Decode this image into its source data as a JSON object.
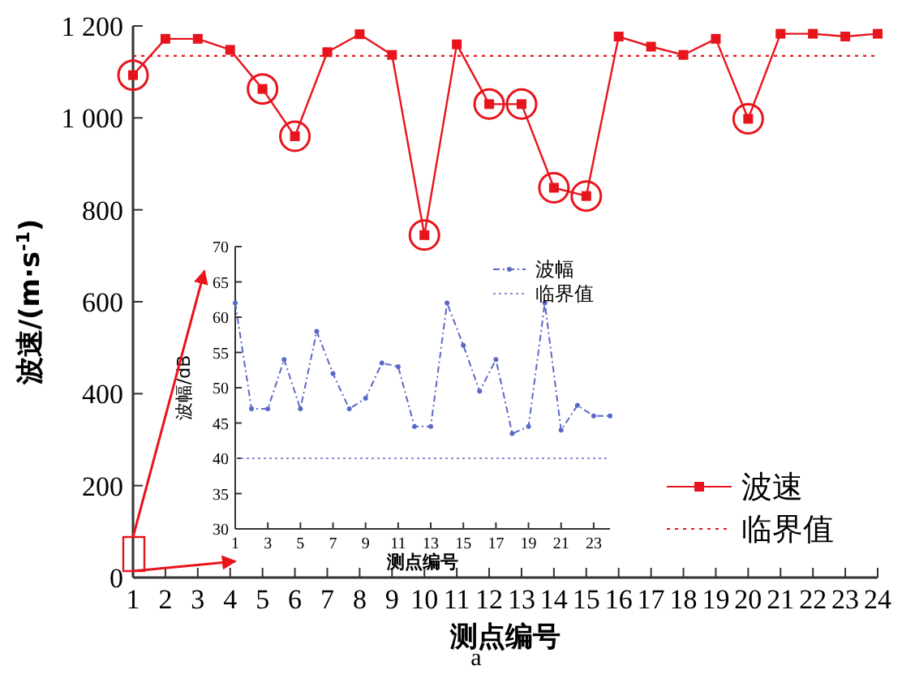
{
  "chart_data": [
    {
      "type": "line",
      "xlabel": "测点编号",
      "ylabel": "波速/(m·s$^{-1}$)",
      "xlim": [
        1,
        24
      ],
      "xticks": [
        1,
        2,
        3,
        4,
        5,
        6,
        7,
        8,
        9,
        10,
        11,
        12,
        13,
        14,
        15,
        16,
        17,
        18,
        19,
        20,
        21,
        22,
        23,
        24
      ],
      "ylim": [
        0,
        1200
      ],
      "yticks": [
        0,
        200,
        400,
        600,
        800,
        {
          "value": 1000,
          "label": "1 000"
        },
        {
          "value": 1200,
          "label": "1 200"
        }
      ],
      "legend": "right",
      "grid": false,
      "annotations": [
        "a"
      ],
      "series": [
        {
          "name": "波速",
          "color": "#e8141c",
          "marker": "square",
          "line_style": "solid",
          "x": [
            1,
            2,
            3,
            4,
            5,
            6,
            7,
            8,
            9,
            10,
            11,
            12,
            13,
            14,
            15,
            16,
            17,
            18,
            19,
            20,
            21,
            22,
            23,
            24
          ],
          "values": [
            1093,
            1172,
            1172,
            1148,
            1063,
            960,
            1143,
            1182,
            1137,
            745,
            1160,
            1030,
            1030,
            848,
            830,
            1177,
            1155,
            1137,
            1172,
            998,
            1183,
            1183,
            1177,
            1183
          ]
        },
        {
          "name": "临界值",
          "color": "#e8141c",
          "type": "line",
          "marker": "none",
          "line_style": "dotted",
          "x": [
            1,
            24
          ],
          "values": [
            1135,
            1135
          ]
        },
        {
          "color": "#e8141c",
          "type": "scatter",
          "marker": "circle",
          "x": [
            1,
            5,
            6,
            10,
            12,
            13,
            14,
            15,
            20
          ],
          "values": [
            1093,
            1063,
            960,
            745,
            1030,
            1030,
            848,
            830,
            998
          ]
        }
      ]
    },
    {
      "type": "line",
      "xlabel": "测点编号",
      "ylabel": "波幅/dB",
      "xlim": [
        1,
        24
      ],
      "xticks": [
        1,
        3,
        5,
        7,
        9,
        11,
        13,
        15,
        17,
        19,
        21,
        23
      ],
      "ylim": [
        30,
        70
      ],
      "yticks": [
        30,
        35,
        40,
        45,
        50,
        55,
        60,
        65,
        70
      ],
      "legend": "top right",
      "grid": false,
      "series": [
        {
          "name": "波幅",
          "color": "#5a68c8",
          "marker": "circle",
          "line_style": "dashed",
          "x": [
            1,
            2,
            3,
            4,
            5,
            6,
            7,
            8,
            9,
            10,
            11,
            12,
            13,
            14,
            15,
            16,
            17,
            18,
            19,
            20,
            21,
            22,
            23,
            24
          ],
          "values": [
            62,
            47,
            47,
            54,
            47,
            58,
            52,
            47,
            48.5,
            53.5,
            53,
            44.5,
            44.5,
            62,
            56,
            49.5,
            54,
            43.5,
            44.5,
            62,
            44,
            47.5,
            46,
            46
          ]
        },
        {
          "name": "临界值",
          "color": "#8a90d8",
          "type": "line",
          "marker": "none",
          "line_style": "dotted",
          "x": [
            1,
            24
          ],
          "values": [
            40,
            40
          ]
        }
      ]
    }
  ]
}
